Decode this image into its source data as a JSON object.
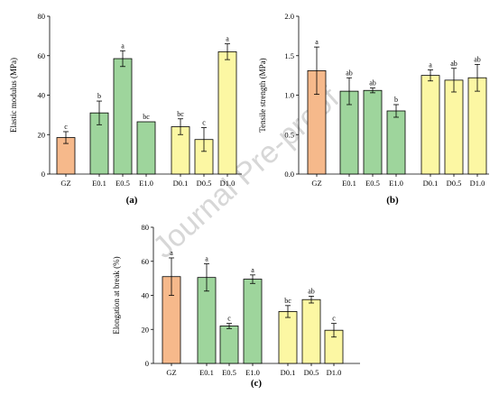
{
  "watermark": "Journal Pre-proof",
  "colors": {
    "GZ": "#f6b98b",
    "E": "#9ed59c",
    "D": "#fcf7a3",
    "stroke": "#000000"
  },
  "chart_data": [
    {
      "type": "bar",
      "panel": "(a)",
      "ylabel": "Elastic modulus (MPa)",
      "xlabel": "",
      "ylim": [
        0,
        80
      ],
      "yticks": [
        0,
        20,
        40,
        60,
        80
      ],
      "categories": [
        "GZ",
        "E0.1",
        "E0.5",
        "E1.0",
        "D0.1",
        "D0.5",
        "D1.0"
      ],
      "groups": [
        "GZ",
        "E",
        "E",
        "E",
        "D",
        "D",
        "D"
      ],
      "values": [
        18.5,
        31,
        58.5,
        26.5,
        24,
        17.5,
        62
      ],
      "errors": [
        3,
        6,
        4,
        0,
        4,
        6,
        4
      ],
      "letters": [
        "c",
        "b",
        "a",
        "bc",
        "bc",
        "c",
        "a"
      ]
    },
    {
      "type": "bar",
      "panel": "(b)",
      "ylabel": "Tensile strength (MPa)",
      "xlabel": "",
      "ylim": [
        0,
        2.0
      ],
      "yticks": [
        "0.0",
        "0.5",
        "1.0",
        "1.5",
        "2.0"
      ],
      "categories": [
        "GZ",
        "E0.1",
        "E0.5",
        "E1.0",
        "D0.1",
        "D0.5",
        "D1.0"
      ],
      "groups": [
        "GZ",
        "E",
        "E",
        "E",
        "D",
        "D",
        "D"
      ],
      "values": [
        1.31,
        1.05,
        1.06,
        0.8,
        1.25,
        1.19,
        1.22
      ],
      "errors": [
        0.3,
        0.17,
        0.03,
        0.08,
        0.07,
        0.15,
        0.17
      ],
      "letters": [
        "a",
        "ab",
        "ab",
        "b",
        "a",
        "ab",
        "ab"
      ]
    },
    {
      "type": "bar",
      "panel": "(c)",
      "ylabel": "Elongation at break (%)",
      "xlabel": "",
      "ylim": [
        0,
        80
      ],
      "yticks": [
        0,
        20,
        40,
        60,
        80
      ],
      "categories": [
        "GZ",
        "E0.1",
        "E0.5",
        "E1.0",
        "D0.1",
        "D0.5",
        "D1.0"
      ],
      "groups": [
        "GZ",
        "E",
        "E",
        "E",
        "D",
        "D",
        "D"
      ],
      "values": [
        51,
        50.5,
        22,
        49.5,
        30.5,
        37.5,
        19.5
      ],
      "errors": [
        11,
        8,
        1.5,
        2.5,
        3.5,
        2,
        4
      ],
      "letters": [
        "a",
        "a",
        "c",
        "a",
        "bc",
        "ab",
        "c"
      ]
    }
  ]
}
